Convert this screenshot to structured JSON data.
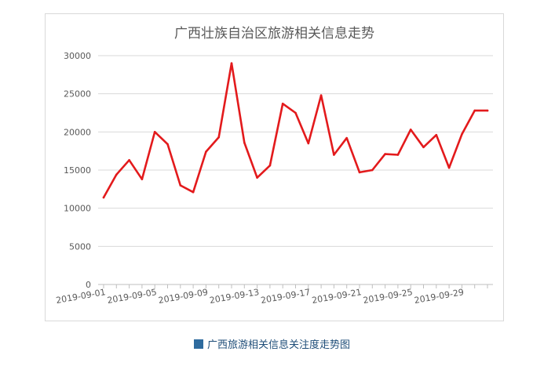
{
  "chart_data": {
    "type": "line",
    "title": "广西壮族自治区旅游相关信息走势",
    "x": [
      "2019-09-01",
      "2019-09-02",
      "2019-09-03",
      "2019-09-04",
      "2019-09-05",
      "2019-09-06",
      "2019-09-07",
      "2019-09-08",
      "2019-09-09",
      "2019-09-10",
      "2019-09-11",
      "2019-09-12",
      "2019-09-13",
      "2019-09-14",
      "2019-09-15",
      "2019-09-16",
      "2019-09-17",
      "2019-09-18",
      "2019-09-19",
      "2019-09-20",
      "2019-09-21",
      "2019-09-22",
      "2019-09-23",
      "2019-09-24",
      "2019-09-25",
      "2019-09-26",
      "2019-09-27",
      "2019-09-28",
      "2019-09-29",
      "2019-09-30",
      "2019-10-01"
    ],
    "x_tick_labels": [
      "2019-09-01",
      "2019-09-05",
      "2019-09-09",
      "2019-09-13",
      "2019-09-17",
      "2019-09-21",
      "2019-09-25",
      "2019-09-29"
    ],
    "series": [
      {
        "values": [
          11400,
          14400,
          16300,
          13800,
          20000,
          18400,
          13000,
          12100,
          17400,
          19300,
          29000,
          18600,
          14000,
          15600,
          23700,
          22500,
          18500,
          24800,
          17000,
          19200,
          14700,
          15000,
          17100,
          17000,
          20300,
          18000,
          19600,
          15300,
          19700,
          22800,
          22800
        ],
        "color": "#e31a1c"
      }
    ],
    "ylim": [
      0,
      30000
    ],
    "y_ticks": [
      "0",
      "5000",
      "10000",
      "15000",
      "20000",
      "25000",
      "30000"
    ],
    "grid": true,
    "xlabel": "",
    "ylabel": ""
  },
  "caption": {
    "text": "广西旅游相关信息关注度走势图",
    "marker_color": "#2e6b9e"
  }
}
